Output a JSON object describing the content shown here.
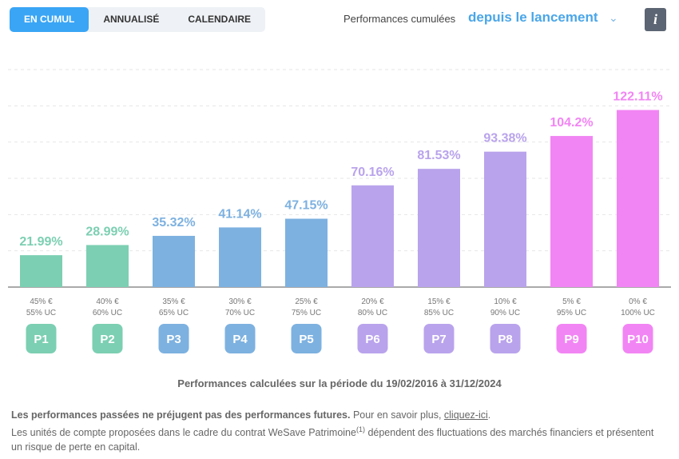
{
  "tabs": [
    {
      "label": "EN CUMUL",
      "active": true
    },
    {
      "label": "ANNUALISÉ",
      "active": false
    },
    {
      "label": "CALENDAIRE",
      "active": false
    }
  ],
  "header": {
    "perf_label": "Performances cumulées",
    "period": "depuis le lancement",
    "chevron_icon": "chevron-down-icon",
    "info_icon": "i"
  },
  "chart_data": {
    "type": "bar",
    "categories": [
      "P1",
      "P2",
      "P3",
      "P4",
      "P5",
      "P6",
      "P7",
      "P8",
      "P9",
      "P10"
    ],
    "values": [
      21.99,
      28.99,
      35.32,
      41.14,
      47.15,
      70.16,
      81.53,
      93.38,
      104.2,
      122.11
    ],
    "value_labels": [
      "21.99%",
      "28.99%",
      "35.32%",
      "41.14%",
      "47.15%",
      "70.16%",
      "81.53%",
      "93.38%",
      "104.2%",
      "122.11%"
    ],
    "allocations": [
      [
        "45% €",
        "55% UC"
      ],
      [
        "40% €",
        "60% UC"
      ],
      [
        "35% €",
        "65% UC"
      ],
      [
        "30% €",
        "70% UC"
      ],
      [
        "25% €",
        "75% UC"
      ],
      [
        "20% €",
        "80% UC"
      ],
      [
        "15% €",
        "85% UC"
      ],
      [
        "10% €",
        "90% UC"
      ],
      [
        "5% €",
        "95% UC"
      ],
      [
        "0% €",
        "100% UC"
      ]
    ],
    "colors": [
      "#7ccfb2",
      "#7ccfb2",
      "#7db1e0",
      "#7db1e0",
      "#7db1e0",
      "#b9a3ec",
      "#b9a3ec",
      "#b9a3ec",
      "#f285f4",
      "#f285f4"
    ],
    "ylim": [
      0,
      150
    ],
    "grid": true,
    "grid_step": 25
  },
  "period_note": "Performances calculées sur la période du 19/02/2016 à 31/12/2024",
  "disclaimer": {
    "bold": "Les performances passées ne préjugent pas des performances futures.",
    "more": " Pour en savoir plus, ",
    "link": "cliquez-ici",
    "end": ".",
    "line2a": "Les unités de compte proposées dans le cadre du contrat WeSave Patrimoine",
    "sup": "(1)",
    "line2b": " dépendent des fluctuations des marchés financiers et présentent un risque de perte en capital."
  }
}
